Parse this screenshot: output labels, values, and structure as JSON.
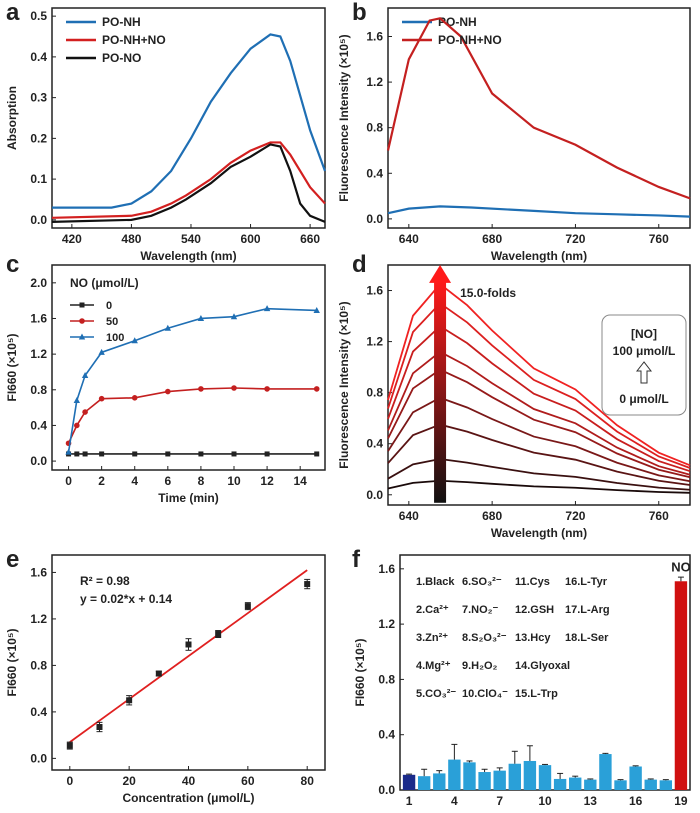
{
  "chart_data": [
    {
      "panel": "a",
      "type": "line",
      "xlabel": "Wavelength (nm)",
      "ylabel": "Absorption",
      "xlim": [
        400,
        675
      ],
      "ylim": [
        -0.02,
        0.52
      ],
      "xticks": [
        420,
        480,
        540,
        600,
        660
      ],
      "yticks": [
        0.0,
        0.1,
        0.2,
        0.3,
        0.4,
        0.5
      ],
      "legend_position": "top-left",
      "series": [
        {
          "name": "PO-NH",
          "color": "#1f6fb4",
          "x": [
            400,
            460,
            480,
            500,
            520,
            540,
            560,
            580,
            600,
            620,
            630,
            640,
            660,
            675
          ],
          "y": [
            0.03,
            0.03,
            0.04,
            0.07,
            0.12,
            0.2,
            0.29,
            0.36,
            0.42,
            0.455,
            0.45,
            0.39,
            0.22,
            0.12
          ]
        },
        {
          "name": "PO-NH+NO",
          "color": "#d32020",
          "x": [
            400,
            480,
            500,
            520,
            535,
            560,
            580,
            600,
            620,
            630,
            640,
            660,
            675
          ],
          "y": [
            0.005,
            0.01,
            0.02,
            0.04,
            0.06,
            0.1,
            0.14,
            0.17,
            0.19,
            0.19,
            0.16,
            0.08,
            0.04
          ]
        },
        {
          "name": "PO-NO",
          "color": "#111111",
          "x": [
            400,
            480,
            500,
            520,
            535,
            560,
            580,
            600,
            620,
            630,
            640,
            650,
            660,
            675
          ],
          "y": [
            -0.005,
            0.0,
            0.01,
            0.03,
            0.05,
            0.09,
            0.13,
            0.155,
            0.185,
            0.18,
            0.12,
            0.04,
            0.01,
            -0.005
          ]
        }
      ]
    },
    {
      "panel": "b",
      "type": "line",
      "xlabel": "Wavelength (nm)",
      "ylabel": "Fluorescence Intensity (×10⁵)",
      "xlim": [
        630,
        775
      ],
      "ylim": [
        -0.08,
        1.85
      ],
      "xticks": [
        640,
        680,
        720,
        760
      ],
      "yticks": [
        0.0,
        0.4,
        0.8,
        1.2,
        1.6
      ],
      "legend_position": "top-right",
      "series": [
        {
          "name": "PO-NH",
          "color": "#1f6fb4",
          "x": [
            630,
            640,
            655,
            670,
            700,
            720,
            740,
            760,
            775
          ],
          "y": [
            0.05,
            0.09,
            0.11,
            0.1,
            0.07,
            0.05,
            0.04,
            0.03,
            0.02
          ]
        },
        {
          "name": "PO-NH+NO",
          "color": "#c42020",
          "x": [
            630,
            640,
            650,
            655,
            665,
            680,
            700,
            720,
            740,
            760,
            775
          ],
          "y": [
            0.6,
            1.4,
            1.74,
            1.76,
            1.6,
            1.1,
            0.8,
            0.65,
            0.45,
            0.28,
            0.18
          ]
        }
      ]
    },
    {
      "panel": "c",
      "type": "line",
      "xlabel": "Time (min)",
      "ylabel": "FI660 (×10⁵)",
      "xlim": [
        -1,
        15.5
      ],
      "ylim": [
        -0.1,
        2.2
      ],
      "xticks": [
        0,
        2,
        4,
        6,
        8,
        10,
        12,
        14
      ],
      "yticks": [
        0.0,
        0.4,
        0.8,
        1.2,
        1.6,
        2.0
      ],
      "legend_title": "NO (μmol/L)",
      "legend_position": "top-left",
      "x": [
        0,
        0.5,
        1,
        2,
        4,
        6,
        8,
        10,
        12,
        15
      ],
      "series": [
        {
          "name": "0",
          "color": "#222222",
          "marker": "square",
          "y": [
            0.08,
            0.08,
            0.08,
            0.08,
            0.08,
            0.08,
            0.08,
            0.08,
            0.08,
            0.08
          ]
        },
        {
          "name": "50",
          "color": "#c42020",
          "marker": "circle",
          "y": [
            0.2,
            0.4,
            0.55,
            0.7,
            0.71,
            0.78,
            0.81,
            0.82,
            0.81,
            0.81
          ]
        },
        {
          "name": "100",
          "color": "#1f6fb4",
          "marker": "triangle",
          "y": [
            0.1,
            0.68,
            0.96,
            1.22,
            1.35,
            1.49,
            1.6,
            1.62,
            1.71,
            1.69
          ]
        }
      ]
    },
    {
      "panel": "d",
      "type": "line",
      "xlabel": "Wavelength (nm)",
      "ylabel": "Fluorescence Intensity (×10⁵)",
      "xlim": [
        630,
        775
      ],
      "ylim": [
        -0.08,
        1.8
      ],
      "xticks": [
        640,
        680,
        720,
        760
      ],
      "yticks": [
        0.0,
        0.4,
        0.8,
        1.2,
        1.6
      ],
      "annotation": "15.0-folds",
      "box_title": "[NO]",
      "box_top": "100 μmol/L",
      "box_bottom": "0 μmol/L",
      "x": [
        630,
        642,
        655,
        668,
        680,
        700,
        720,
        740,
        760,
        775
      ],
      "shape": [
        0.45,
        0.85,
        1.0,
        0.9,
        0.78,
        0.6,
        0.5,
        0.33,
        0.2,
        0.14
      ],
      "peaks": [
        0.11,
        0.28,
        0.55,
        0.76,
        0.98,
        1.12,
        1.32,
        1.5,
        1.65
      ],
      "colors": [
        "#1a0a0a",
        "#3a1010",
        "#5a1414",
        "#7a1818",
        "#961a1a",
        "#b01c1c",
        "#c81e1e",
        "#dc2020",
        "#f02222"
      ]
    },
    {
      "panel": "e",
      "type": "scatter",
      "xlabel": "Concentration (μmol/L)",
      "ylabel": "FI660 (×10⁵)",
      "xlim": [
        -6,
        86
      ],
      "ylim": [
        -0.1,
        1.75
      ],
      "xticks": [
        0,
        20,
        40,
        60,
        80
      ],
      "yticks": [
        0.0,
        0.4,
        0.8,
        1.2,
        1.6
      ],
      "r2_label": "R² = 0.98",
      "equation_label": "y = 0.02*x + 0.14",
      "fit": {
        "slope": 0.0185,
        "intercept": 0.14,
        "color": "#e02020"
      },
      "x": [
        0,
        10,
        20,
        30,
        40,
        50,
        60,
        80
      ],
      "y": [
        0.11,
        0.27,
        0.5,
        0.73,
        0.98,
        1.07,
        1.31,
        1.5
      ],
      "err": [
        0.03,
        0.04,
        0.04,
        0.02,
        0.05,
        0.03,
        0.03,
        0.04
      ]
    },
    {
      "panel": "f",
      "type": "bar",
      "xlabel": "",
      "ylabel": "FI660 (×10⁵)",
      "ylim": [
        0,
        1.7
      ],
      "xticks": [
        1,
        4,
        7,
        10,
        13,
        16,
        19
      ],
      "yticks": [
        0.0,
        0.4,
        0.8,
        1.2,
        1.6
      ],
      "bar_label": "NO",
      "categories": [
        1,
        2,
        3,
        4,
        5,
        6,
        7,
        8,
        9,
        10,
        11,
        12,
        13,
        14,
        15,
        16,
        17,
        18,
        19
      ],
      "values": [
        0.11,
        0.1,
        0.12,
        0.22,
        0.2,
        0.13,
        0.14,
        0.19,
        0.21,
        0.18,
        0.08,
        0.09,
        0.075,
        0.26,
        0.07,
        0.17,
        0.075,
        0.07,
        1.51
      ],
      "err": [
        0.005,
        0.05,
        0.02,
        0.11,
        0.01,
        0.02,
        0.02,
        0.09,
        0.11,
        0.005,
        0.04,
        0.01,
        0.005,
        0.005,
        0.005,
        0.005,
        0.005,
        0.005,
        0.03
      ],
      "colors": {
        "blank": "#1a2a8a",
        "analyte": "#2aa0d8",
        "no": "#d01010"
      },
      "legend": [
        [
          "1.Black",
          "6.SO₃²⁻",
          "11.Cys",
          "16.L-Tyr"
        ],
        [
          "2.Ca²⁺",
          "7.NO₂⁻",
          "12.GSH",
          "17.L-Arg"
        ],
        [
          "3.Zn²⁺",
          "8.S₂O₃²⁻",
          "13.Hcy",
          "18.L-Ser"
        ],
        [
          "4.Mg²⁺",
          "9.H₂O₂",
          "14.Glyoxal",
          ""
        ],
        [
          "5.CO₃²⁻",
          "10.ClO₄⁻",
          "15.L-Trp",
          ""
        ]
      ]
    }
  ]
}
